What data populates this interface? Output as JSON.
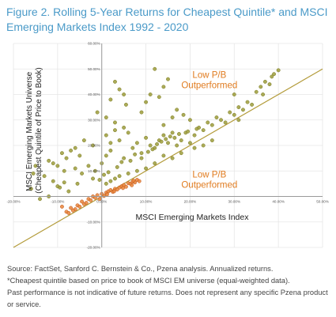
{
  "figure": {
    "title": "Figure 2. Rolling 5-Year Returns for Cheapest Quintile* and MSCI Emerging Markets Index 1992 - 2020"
  },
  "notes": {
    "source": "Source: FactSet, Sanford C. Bernstein & Co., Pzena analysis. Annualized returns.",
    "footnote": "*Cheapest quintile based on price to book of MSCI EM universe (equal-weighted data).",
    "disclaimer": "Past performance is not indicative of future returns. Does not represent any specific Pzena product or service."
  },
  "chart_data": {
    "type": "scatter",
    "xlabel": "MSCI Emerging Markets Index",
    "ylabel": [
      "MSCI Emerging Markets Universe",
      "(Cheapest Quintile of Price to Book)"
    ],
    "xlim": [
      -0.2,
      0.5
    ],
    "ylim": [
      -0.2,
      0.6
    ],
    "x_ticks": [
      "-20.00%",
      "-10.00%",
      "0.00%",
      "10.00%",
      "20.00%",
      "30.00%",
      "40.00%",
      "50.00%"
    ],
    "y_ticks": [
      "-20.00%",
      "-10.00%",
      "0.00%",
      "10.00%",
      "20.00%",
      "30.00%",
      "40.00%",
      "50.00%",
      "60.00%"
    ],
    "grid": true,
    "reference_line": {
      "slope": 1,
      "intercept": 0,
      "color": "#b39b3a"
    },
    "annotations": [
      {
        "text": [
          "Low P/B",
          "Outperformed"
        ],
        "x": 0.19,
        "y": 0.465,
        "color": "#e07b1f"
      },
      {
        "text": [
          "Low P/B",
          "Outperformed"
        ],
        "x": 0.19,
        "y": 0.075,
        "color": "#e07b1f"
      }
    ],
    "colors": {
      "above": "#9c9c3a",
      "below": "#e8843a",
      "axis": "#9a9a9a",
      "grid": "#e6e6e6"
    },
    "series": [
      {
        "marker": "green",
        "points": [
          [
            0.03,
            0.45
          ],
          [
            0.04,
            0.42
          ],
          [
            0.05,
            0.4
          ],
          [
            0.02,
            0.38
          ],
          [
            0.055,
            0.36
          ],
          [
            -0.01,
            0.33
          ],
          [
            0.01,
            0.31
          ],
          [
            0.03,
            0.29
          ],
          [
            0.12,
            0.5
          ],
          [
            0.14,
            0.43
          ],
          [
            0.15,
            0.46
          ],
          [
            0.11,
            0.4
          ],
          [
            0.13,
            0.39
          ],
          [
            0.1,
            0.37
          ],
          [
            0.17,
            0.34
          ],
          [
            0.185,
            0.32
          ],
          [
            0.2,
            0.3
          ],
          [
            0.16,
            0.31
          ],
          [
            0.14,
            0.28
          ],
          [
            0.09,
            0.33
          ],
          [
            0.01,
            0.24
          ],
          [
            0.03,
            0.26
          ],
          [
            0.05,
            0.27
          ],
          [
            0.06,
            0.25
          ],
          [
            0.04,
            0.22
          ],
          [
            0.02,
            0.21
          ],
          [
            -0.02,
            0.2
          ],
          [
            -0.04,
            0.22
          ],
          [
            -0.06,
            0.19
          ],
          [
            -0.05,
            0.16
          ],
          [
            -0.07,
            0.18
          ],
          [
            -0.08,
            0.15
          ],
          [
            -0.09,
            0.17
          ],
          [
            -0.1,
            0.12
          ],
          [
            -0.11,
            0.13
          ],
          [
            -0.12,
            0.14
          ],
          [
            -0.085,
            0.1
          ],
          [
            -0.06,
            0.11
          ],
          [
            -0.045,
            0.09
          ],
          [
            -0.03,
            0.12
          ],
          [
            -0.015,
            0.1
          ],
          [
            0.0,
            0.13
          ],
          [
            -0.02,
            0.07
          ],
          [
            -0.055,
            0.05
          ],
          [
            -0.075,
            0.02
          ],
          [
            -0.095,
            0.035
          ],
          [
            -0.11,
            0.06
          ],
          [
            -0.13,
            0.08
          ],
          [
            -0.15,
            0.12
          ],
          [
            -0.155,
            0.09
          ],
          [
            -0.16,
            0.03
          ],
          [
            -0.14,
            -0.01
          ],
          [
            -0.12,
            0.0
          ],
          [
            -0.1,
            0.04
          ],
          [
            -0.085,
            0.055
          ],
          [
            0.01,
            0.16
          ],
          [
            0.02,
            0.18
          ],
          [
            0.05,
            0.15
          ],
          [
            0.07,
            0.19
          ],
          [
            0.08,
            0.21
          ],
          [
            0.09,
            0.17
          ],
          [
            0.1,
            0.23
          ],
          [
            0.11,
            0.2
          ],
          [
            0.12,
            0.19
          ],
          [
            0.13,
            0.22
          ],
          [
            0.14,
            0.24
          ],
          [
            0.15,
            0.21
          ],
          [
            0.16,
            0.25
          ],
          [
            0.165,
            0.23
          ],
          [
            0.17,
            0.2
          ],
          [
            0.18,
            0.22
          ],
          [
            0.19,
            0.25
          ],
          [
            0.2,
            0.21
          ],
          [
            0.21,
            0.24
          ],
          [
            0.22,
            0.27
          ],
          [
            0.23,
            0.26
          ],
          [
            0.24,
            0.29
          ],
          [
            0.25,
            0.28
          ],
          [
            0.26,
            0.31
          ],
          [
            0.27,
            0.3
          ],
          [
            0.28,
            0.29
          ],
          [
            0.29,
            0.33
          ],
          [
            0.3,
            0.32
          ],
          [
            0.31,
            0.35
          ],
          [
            0.32,
            0.34
          ],
          [
            0.33,
            0.37
          ],
          [
            0.34,
            0.36
          ],
          [
            0.35,
            0.41
          ],
          [
            0.36,
            0.43
          ],
          [
            0.37,
            0.45
          ],
          [
            0.38,
            0.44
          ],
          [
            0.39,
            0.48
          ],
          [
            0.4,
            0.495
          ],
          [
            0.385,
            0.47
          ],
          [
            0.365,
            0.4
          ],
          [
            0.3,
            0.4
          ],
          [
            0.31,
            0.3
          ],
          [
            0.25,
            0.22
          ],
          [
            0.23,
            0.2
          ],
          [
            0.21,
            0.19
          ],
          [
            0.18,
            0.17
          ],
          [
            0.16,
            0.15
          ],
          [
            0.14,
            0.16
          ],
          [
            0.12,
            0.13
          ],
          [
            0.1,
            0.11
          ],
          [
            0.08,
            0.1
          ],
          [
            0.06,
            0.09
          ],
          [
            0.04,
            0.08
          ],
          [
            0.03,
            0.07
          ],
          [
            0.02,
            0.06
          ],
          [
            0.01,
            0.05
          ],
          [
            0.005,
            0.085
          ],
          [
            -0.005,
            0.065
          ],
          [
            0.015,
            0.095
          ],
          [
            0.035,
            0.115
          ],
          [
            0.045,
            0.135
          ],
          [
            0.065,
            0.14
          ],
          [
            0.075,
            0.165
          ],
          [
            0.09,
            0.15
          ],
          [
            0.105,
            0.175
          ],
          [
            0.115,
            0.185
          ],
          [
            0.125,
            0.205
          ],
          [
            0.135,
            0.215
          ],
          [
            0.145,
            0.225
          ],
          [
            0.155,
            0.235
          ],
          [
            0.175,
            0.245
          ],
          [
            0.195,
            0.255
          ],
          [
            0.215,
            0.265
          ]
        ]
      },
      {
        "marker": "orange",
        "points": [
          [
            -0.09,
            -0.04
          ],
          [
            -0.08,
            -0.06
          ],
          [
            -0.07,
            -0.045
          ],
          [
            -0.06,
            -0.05
          ],
          [
            -0.055,
            -0.035
          ],
          [
            -0.045,
            -0.02
          ],
          [
            -0.04,
            -0.03
          ],
          [
            -0.03,
            -0.01
          ],
          [
            -0.025,
            -0.015
          ],
          [
            -0.02,
            0.0
          ],
          [
            -0.015,
            -0.005
          ],
          [
            -0.01,
            0.005
          ],
          [
            -0.005,
            -0.01
          ],
          [
            0.0,
            0.01
          ],
          [
            0.005,
            0.002
          ],
          [
            0.01,
            0.015
          ],
          [
            0.015,
            0.02
          ],
          [
            0.02,
            0.025
          ],
          [
            0.025,
            0.018
          ],
          [
            0.03,
            0.03
          ],
          [
            0.035,
            0.027
          ],
          [
            0.04,
            0.035
          ],
          [
            0.045,
            0.04
          ],
          [
            0.05,
            0.045
          ],
          [
            0.055,
            0.038
          ],
          [
            0.06,
            0.052
          ],
          [
            0.065,
            0.05
          ],
          [
            0.07,
            0.058
          ],
          [
            0.075,
            0.055
          ],
          [
            0.08,
            0.065
          ],
          [
            0.085,
            0.06
          ],
          [
            -0.065,
            -0.055
          ],
          [
            -0.035,
            -0.025
          ],
          [
            0.012,
            0.008
          ],
          [
            0.028,
            0.02
          ],
          [
            0.048,
            0.033
          ],
          [
            0.068,
            0.044
          ],
          [
            0.072,
            0.062
          ],
          [
            -0.05,
            -0.04
          ],
          [
            -0.075,
            -0.065
          ]
        ]
      }
    ]
  }
}
